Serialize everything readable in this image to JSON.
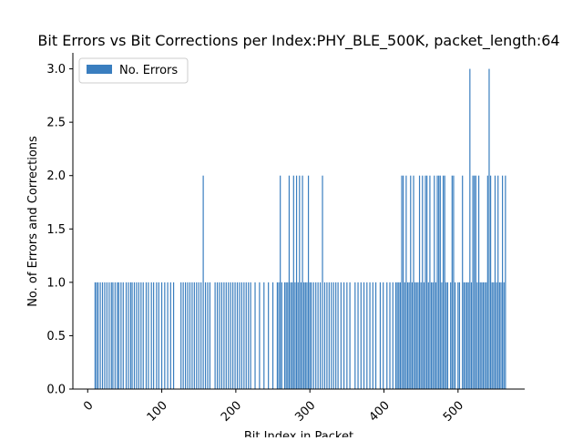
{
  "chart_data": {
    "type": "bar",
    "title": "Bit Errors vs Bit Corrections per Index:PHY_BLE_500K, packet_length:64",
    "xlabel": "Bit Index in Packet",
    "ylabel": "No. of Errors and Corrections",
    "xlim": [
      -20,
      590
    ],
    "ylim": [
      0,
      3.15
    ],
    "xticks": [
      0,
      100,
      200,
      300,
      400,
      500
    ],
    "yticks": [
      0.0,
      0.5,
      1.0,
      1.5,
      2.0,
      2.5,
      3.0
    ],
    "xtick_rotation": 45,
    "grid": false,
    "legend_position": "top-left",
    "colors": {
      "bar": "#3a7ebf"
    },
    "series": [
      {
        "name": "No. Errors",
        "points": [
          [
            10,
            1
          ],
          [
            12,
            1
          ],
          [
            14,
            1
          ],
          [
            17,
            1
          ],
          [
            20,
            1
          ],
          [
            23,
            1
          ],
          [
            26,
            1
          ],
          [
            29,
            1
          ],
          [
            32,
            1
          ],
          [
            34,
            1
          ],
          [
            37,
            1
          ],
          [
            40,
            1
          ],
          [
            42,
            1
          ],
          [
            45,
            1
          ],
          [
            48,
            1
          ],
          [
            52,
            1
          ],
          [
            55,
            1
          ],
          [
            58,
            1
          ],
          [
            60,
            1
          ],
          [
            63,
            1
          ],
          [
            66,
            1
          ],
          [
            69,
            1
          ],
          [
            72,
            1
          ],
          [
            75,
            1
          ],
          [
            79,
            1
          ],
          [
            82,
            1
          ],
          [
            86,
            1
          ],
          [
            89,
            1
          ],
          [
            93,
            1
          ],
          [
            96,
            1
          ],
          [
            100,
            1
          ],
          [
            104,
            1
          ],
          [
            108,
            1
          ],
          [
            112,
            1
          ],
          [
            116,
            1
          ],
          [
            126,
            1
          ],
          [
            129,
            1
          ],
          [
            132,
            1
          ],
          [
            135,
            1
          ],
          [
            138,
            1
          ],
          [
            141,
            1
          ],
          [
            144,
            1
          ],
          [
            147,
            1
          ],
          [
            150,
            1
          ],
          [
            153,
            1
          ],
          [
            156,
            2
          ],
          [
            159,
            1
          ],
          [
            162,
            1
          ],
          [
            165,
            1
          ],
          [
            172,
            1
          ],
          [
            175,
            1
          ],
          [
            178,
            1
          ],
          [
            181,
            1
          ],
          [
            184,
            1
          ],
          [
            187,
            1
          ],
          [
            190,
            1
          ],
          [
            193,
            1
          ],
          [
            196,
            1
          ],
          [
            199,
            1
          ],
          [
            202,
            1
          ],
          [
            205,
            1
          ],
          [
            208,
            1
          ],
          [
            211,
            1
          ],
          [
            214,
            1
          ],
          [
            217,
            1
          ],
          [
            220,
            1
          ],
          [
            226,
            1
          ],
          [
            232,
            1
          ],
          [
            238,
            1
          ],
          [
            244,
            1
          ],
          [
            250,
            1
          ],
          [
            256,
            1
          ],
          [
            258,
            1
          ],
          [
            260,
            2
          ],
          [
            262,
            1
          ],
          [
            266,
            1
          ],
          [
            268,
            1
          ],
          [
            270,
            1
          ],
          [
            272,
            2
          ],
          [
            274,
            1
          ],
          [
            276,
            1
          ],
          [
            278,
            2
          ],
          [
            280,
            1
          ],
          [
            282,
            2
          ],
          [
            284,
            1
          ],
          [
            286,
            2
          ],
          [
            288,
            1
          ],
          [
            290,
            2
          ],
          [
            292,
            1
          ],
          [
            294,
            1
          ],
          [
            296,
            1
          ],
          [
            298,
            2
          ],
          [
            300,
            1
          ],
          [
            302,
            1
          ],
          [
            305,
            1
          ],
          [
            308,
            1
          ],
          [
            311,
            1
          ],
          [
            314,
            1
          ],
          [
            317,
            2
          ],
          [
            320,
            1
          ],
          [
            323,
            1
          ],
          [
            326,
            1
          ],
          [
            329,
            1
          ],
          [
            332,
            1
          ],
          [
            335,
            1
          ],
          [
            338,
            1
          ],
          [
            342,
            1
          ],
          [
            346,
            1
          ],
          [
            350,
            1
          ],
          [
            354,
            1
          ],
          [
            361,
            1
          ],
          [
            365,
            1
          ],
          [
            369,
            1
          ],
          [
            373,
            1
          ],
          [
            377,
            1
          ],
          [
            381,
            1
          ],
          [
            385,
            1
          ],
          [
            389,
            1
          ],
          [
            395,
            1
          ],
          [
            399,
            1
          ],
          [
            404,
            1
          ],
          [
            408,
            1
          ],
          [
            412,
            1
          ],
          [
            416,
            1
          ],
          [
            418,
            1
          ],
          [
            420,
            1
          ],
          [
            422,
            1
          ],
          [
            424,
            2
          ],
          [
            426,
            2
          ],
          [
            428,
            1
          ],
          [
            430,
            2
          ],
          [
            432,
            1
          ],
          [
            434,
            1
          ],
          [
            436,
            2
          ],
          [
            438,
            1
          ],
          [
            440,
            2
          ],
          [
            442,
            1
          ],
          [
            444,
            1
          ],
          [
            446,
            1
          ],
          [
            448,
            2
          ],
          [
            450,
            1
          ],
          [
            452,
            2
          ],
          [
            454,
            1
          ],
          [
            456,
            2
          ],
          [
            458,
            2
          ],
          [
            460,
            1
          ],
          [
            462,
            2
          ],
          [
            464,
            1
          ],
          [
            466,
            1
          ],
          [
            468,
            2
          ],
          [
            470,
            1
          ],
          [
            472,
            2
          ],
          [
            474,
            2
          ],
          [
            476,
            2
          ],
          [
            478,
            1
          ],
          [
            480,
            2
          ],
          [
            482,
            2
          ],
          [
            484,
            1
          ],
          [
            486,
            1
          ],
          [
            490,
            1
          ],
          [
            492,
            2
          ],
          [
            494,
            2
          ],
          [
            496,
            1
          ],
          [
            500,
            1
          ],
          [
            502,
            1
          ],
          [
            506,
            2
          ],
          [
            508,
            1
          ],
          [
            510,
            1
          ],
          [
            512,
            1
          ],
          [
            514,
            1
          ],
          [
            516,
            3
          ],
          [
            518,
            1
          ],
          [
            520,
            2
          ],
          [
            522,
            2
          ],
          [
            524,
            2
          ],
          [
            526,
            1
          ],
          [
            528,
            2
          ],
          [
            530,
            1
          ],
          [
            532,
            1
          ],
          [
            534,
            1
          ],
          [
            536,
            1
          ],
          [
            538,
            1
          ],
          [
            540,
            2
          ],
          [
            542,
            3
          ],
          [
            544,
            2
          ],
          [
            546,
            1
          ],
          [
            548,
            1
          ],
          [
            550,
            2
          ],
          [
            552,
            1
          ],
          [
            554,
            2
          ],
          [
            556,
            1
          ],
          [
            558,
            1
          ],
          [
            560,
            2
          ],
          [
            562,
            1
          ],
          [
            564,
            2
          ]
        ]
      }
    ]
  }
}
